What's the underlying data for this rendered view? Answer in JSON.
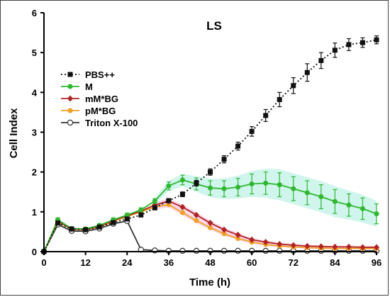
{
  "chart_data": {
    "type": "line",
    "title": "LS",
    "xlabel": "Time (h)",
    "ylabel": "Cell Index",
    "xlim": [
      0,
      96
    ],
    "ylim": [
      0,
      6
    ],
    "xticks": [
      0,
      12,
      24,
      36,
      48,
      60,
      72,
      84,
      96
    ],
    "yticks": [
      0,
      1,
      2,
      3,
      4,
      5,
      6
    ],
    "grid": false,
    "legend_position": "left",
    "series": [
      {
        "name": "PBS++",
        "color": "#111111",
        "marker": "square",
        "line_style": "dotted",
        "band_color": "",
        "x": [
          0,
          4,
          8,
          12,
          16,
          20,
          24,
          28,
          32,
          36,
          40,
          44,
          48,
          52,
          56,
          60,
          64,
          68,
          72,
          76,
          80,
          84,
          88,
          92,
          96
        ],
        "y": [
          0,
          0.72,
          0.57,
          0.55,
          0.62,
          0.73,
          0.82,
          0.92,
          1.1,
          1.28,
          1.44,
          1.72,
          2.0,
          2.32,
          2.65,
          3.02,
          3.42,
          3.82,
          4.17,
          4.5,
          4.8,
          5.06,
          5.2,
          5.25,
          5.32
        ],
        "error": [
          0,
          0.03,
          0.03,
          0.03,
          0.03,
          0.03,
          0.04,
          0.04,
          0.05,
          0.05,
          0.06,
          0.07,
          0.08,
          0.09,
          0.1,
          0.12,
          0.15,
          0.18,
          0.2,
          0.22,
          0.2,
          0.18,
          0.15,
          0.12,
          0.1
        ]
      },
      {
        "name": "M",
        "color": "#2db82d",
        "marker": "circle-filled",
        "line_style": "solid",
        "band_color": "#bff2e6",
        "x": [
          0,
          4,
          8,
          12,
          16,
          20,
          24,
          28,
          32,
          36,
          40,
          44,
          48,
          52,
          56,
          60,
          64,
          68,
          72,
          76,
          80,
          84,
          88,
          92,
          96
        ],
        "y": [
          0,
          0.8,
          0.58,
          0.57,
          0.66,
          0.8,
          0.92,
          1.05,
          1.27,
          1.65,
          1.8,
          1.7,
          1.6,
          1.58,
          1.62,
          1.7,
          1.72,
          1.68,
          1.58,
          1.48,
          1.38,
          1.26,
          1.17,
          1.08,
          0.95
        ],
        "error": [
          0,
          0.05,
          0.04,
          0.04,
          0.04,
          0.05,
          0.05,
          0.05,
          0.06,
          0.1,
          0.12,
          0.15,
          0.18,
          0.2,
          0.22,
          0.25,
          0.28,
          0.3,
          0.3,
          0.3,
          0.3,
          0.3,
          0.28,
          0.27,
          0.25
        ]
      },
      {
        "name": "mM*BG",
        "color": "#b22222",
        "marker": "diamond",
        "line_style": "solid",
        "band_color": "#f6c9e6",
        "x": [
          0,
          4,
          8,
          12,
          16,
          20,
          24,
          28,
          32,
          36,
          40,
          44,
          48,
          52,
          56,
          60,
          64,
          68,
          72,
          76,
          80,
          84,
          88,
          92,
          96
        ],
        "y": [
          0,
          0.77,
          0.57,
          0.56,
          0.64,
          0.78,
          0.9,
          1.02,
          1.17,
          1.27,
          1.12,
          0.92,
          0.72,
          0.55,
          0.42,
          0.3,
          0.24,
          0.19,
          0.16,
          0.14,
          0.13,
          0.12,
          0.12,
          0.11,
          0.11
        ],
        "error": [
          0,
          0.03,
          0.03,
          0.03,
          0.03,
          0.03,
          0.04,
          0.04,
          0.05,
          0.05,
          0.05,
          0.05,
          0.05,
          0.04,
          0.04,
          0.03,
          0.03,
          0.03,
          0.03,
          0.02,
          0.02,
          0.02,
          0.02,
          0.02,
          0.02
        ]
      },
      {
        "name": "pM*BG",
        "color": "#f0a020",
        "marker": "circle-filled",
        "line_style": "solid",
        "band_color": "#f6c9e6",
        "x": [
          0,
          4,
          8,
          12,
          16,
          20,
          24,
          28,
          32,
          36,
          40,
          44,
          48,
          52,
          56,
          60,
          64,
          68,
          72,
          76,
          80,
          84,
          88,
          92,
          96
        ],
        "y": [
          0,
          0.75,
          0.56,
          0.55,
          0.62,
          0.76,
          0.88,
          1.0,
          1.12,
          1.18,
          0.98,
          0.78,
          0.6,
          0.45,
          0.33,
          0.24,
          0.18,
          0.14,
          0.12,
          0.1,
          0.09,
          0.08,
          0.08,
          0.08,
          0.08
        ],
        "error": [
          0,
          0.03,
          0.03,
          0.03,
          0.03,
          0.03,
          0.04,
          0.04,
          0.05,
          0.05,
          0.05,
          0.05,
          0.04,
          0.04,
          0.03,
          0.03,
          0.03,
          0.02,
          0.02,
          0.02,
          0.02,
          0.02,
          0.02,
          0.02,
          0.02
        ]
      },
      {
        "name": "Triton X-100",
        "color": "#333333",
        "marker": "circle-open",
        "line_style": "solid",
        "band_color": "",
        "x": [
          0,
          4,
          8,
          12,
          16,
          20,
          24,
          28,
          32,
          36,
          40,
          44,
          48,
          52,
          56,
          60,
          64,
          68,
          72,
          76,
          80,
          84,
          88,
          92,
          96
        ],
        "y": [
          0,
          0.68,
          0.52,
          0.51,
          0.58,
          0.7,
          0.77,
          0.05,
          0.03,
          0.02,
          0.02,
          0.02,
          0.02,
          0.02,
          0.02,
          0.02,
          0.02,
          0.02,
          0.02,
          0.02,
          0.02,
          0.02,
          0.02,
          0.02,
          0.02
        ],
        "error": [
          0,
          0.02,
          0.02,
          0.02,
          0.02,
          0.02,
          0.02,
          0.01,
          0.01,
          0.01,
          0.01,
          0.01,
          0.01,
          0.01,
          0.01,
          0.01,
          0.01,
          0.01,
          0.01,
          0.01,
          0.01,
          0.01,
          0.01,
          0.01,
          0.01
        ]
      }
    ]
  }
}
